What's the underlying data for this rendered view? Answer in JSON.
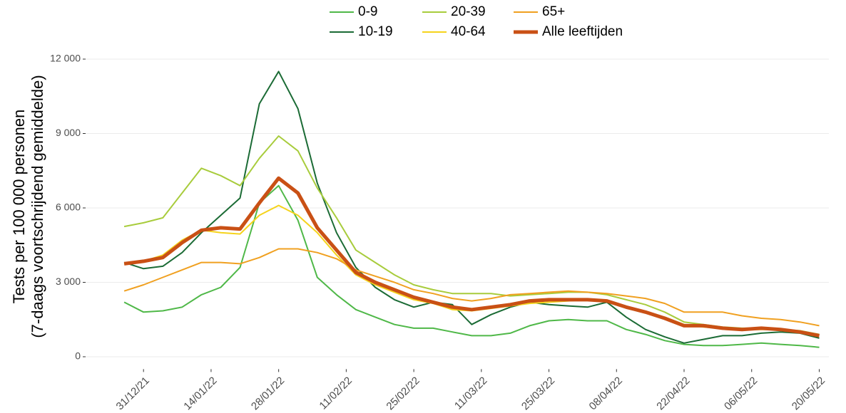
{
  "chart_data": {
    "type": "line",
    "ylabel": [
      "Tests per 100 000 personen",
      "(7-daags voortschrijdend gemiddelde)"
    ],
    "x": [
      "27/12/21",
      "31/12/21",
      "04/01/22",
      "08/01/22",
      "12/01/22",
      "16/01/22",
      "20/01/22",
      "24/01/22",
      "28/01/22",
      "01/02/22",
      "05/02/22",
      "09/02/22",
      "13/02/22",
      "17/02/22",
      "21/02/22",
      "25/02/22",
      "01/03/22",
      "05/03/22",
      "09/03/22",
      "13/03/22",
      "17/03/22",
      "21/03/22",
      "25/03/22",
      "29/03/22",
      "02/04/22",
      "06/04/22",
      "10/04/22",
      "14/04/22",
      "18/04/22",
      "22/04/22",
      "26/04/22",
      "30/04/22",
      "04/05/22",
      "08/05/22",
      "12/05/22",
      "16/05/22",
      "20/05/22"
    ],
    "series": [
      {
        "name": "0-9",
        "color": "#4fb848",
        "linewidth": 2,
        "values": [
          2200,
          1800,
          1850,
          2000,
          2500,
          2800,
          3600,
          6200,
          6900,
          5500,
          3200,
          2500,
          1900,
          1600,
          1300,
          1150,
          1150,
          1000,
          850,
          850,
          950,
          1250,
          1450,
          1500,
          1450,
          1450,
          1100,
          900,
          650,
          500,
          450,
          450,
          500,
          550,
          500,
          450,
          380
        ]
      },
      {
        "name": "10-19",
        "color": "#1b6b35",
        "linewidth": 2,
        "values": [
          3800,
          3550,
          3650,
          4200,
          5000,
          5700,
          6400,
          10200,
          11500,
          10000,
          7000,
          5000,
          3600,
          2800,
          2300,
          2000,
          2200,
          2100,
          1300,
          1700,
          2000,
          2200,
          2100,
          2050,
          2000,
          2200,
          1600,
          1100,
          800,
          550,
          700,
          850,
          850,
          950,
          1000,
          950,
          750
        ]
      },
      {
        "name": "20-39",
        "color": "#a8cc3c",
        "linewidth": 2,
        "values": [
          5250,
          5400,
          5600,
          6600,
          7600,
          7300,
          6900,
          8000,
          8900,
          8300,
          6800,
          5600,
          4300,
          3800,
          3300,
          2900,
          2700,
          2550,
          2550,
          2550,
          2450,
          2500,
          2550,
          2600,
          2600,
          2500,
          2300,
          2100,
          1800,
          1400,
          1300,
          1200,
          1150,
          1150,
          1100,
          1050,
          900
        ]
      },
      {
        "name": "40-64",
        "color": "#f5d31c",
        "linewidth": 2,
        "values": [
          3750,
          3850,
          4100,
          4700,
          5100,
          5000,
          4950,
          5700,
          6100,
          5700,
          5000,
          4100,
          3300,
          2900,
          2600,
          2300,
          2150,
          1900,
          1850,
          1950,
          2050,
          2150,
          2200,
          2250,
          2300,
          2250,
          2000,
          1800,
          1600,
          1300,
          1200,
          1150,
          1100,
          1100,
          1100,
          1000,
          850
        ]
      },
      {
        "name": "65+",
        "color": "#f0a020",
        "linewidth": 2,
        "values": [
          2650,
          2900,
          3200,
          3500,
          3800,
          3800,
          3750,
          4000,
          4350,
          4350,
          4200,
          3950,
          3500,
          3250,
          3000,
          2700,
          2550,
          2350,
          2250,
          2350,
          2500,
          2550,
          2600,
          2650,
          2600,
          2550,
          2450,
          2350,
          2150,
          1800,
          1800,
          1800,
          1650,
          1550,
          1500,
          1400,
          1250
        ]
      },
      {
        "name": "Alle leeftijden",
        "color": "#c95015",
        "linewidth": 5,
        "values": [
          3750,
          3850,
          4000,
          4600,
          5100,
          5200,
          5150,
          6200,
          7200,
          6600,
          5200,
          4300,
          3400,
          3000,
          2700,
          2400,
          2200,
          2000,
          1900,
          2000,
          2100,
          2250,
          2300,
          2300,
          2300,
          2250,
          2000,
          1800,
          1550,
          1250,
          1250,
          1150,
          1100,
          1150,
          1100,
          1000,
          850
        ]
      }
    ],
    "xlim": [
      "19/12/21",
      "22/05/22"
    ],
    "xticks": [
      "31/12/21",
      "14/01/22",
      "28/01/22",
      "11/02/22",
      "25/02/22",
      "11/03/22",
      "25/03/22",
      "08/04/22",
      "22/04/22",
      "06/05/22",
      "20/05/22"
    ],
    "ylim": [
      -500,
      12500
    ],
    "yticks": [
      0,
      {
        "value": 3000,
        "label": "3 000"
      },
      {
        "value": 6000,
        "label": "6 000"
      },
      {
        "value": 9000,
        "label": "9 000"
      },
      {
        "value": 12000,
        "label": "12 000"
      }
    ],
    "grid": true,
    "legend": "top"
  }
}
